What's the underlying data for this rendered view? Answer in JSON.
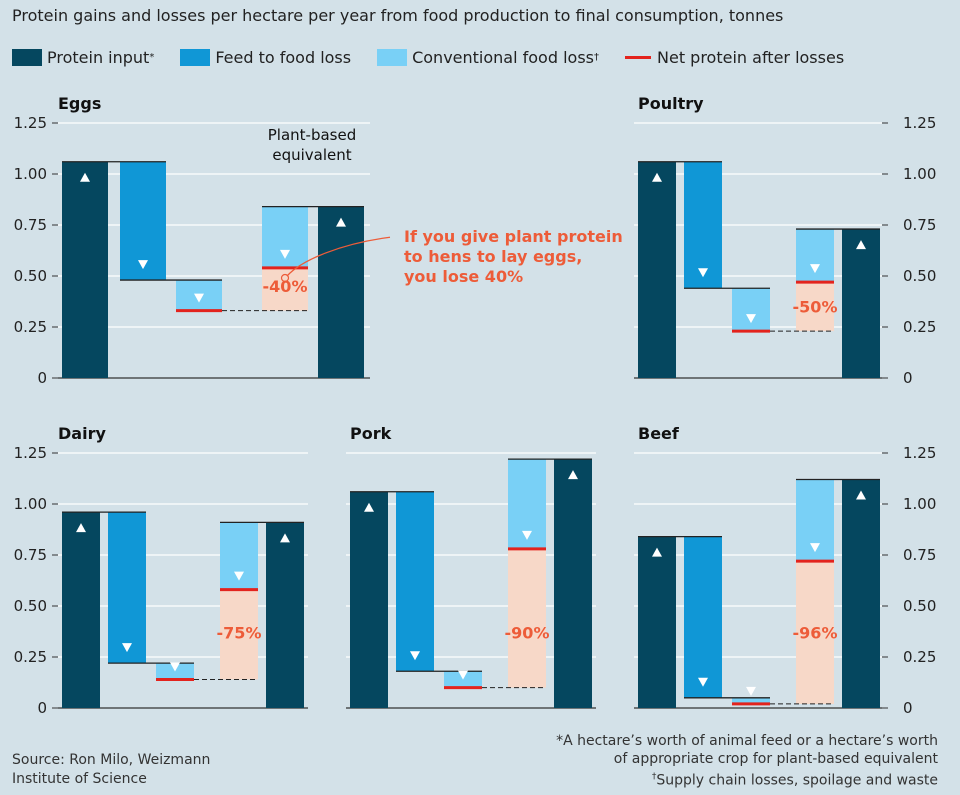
{
  "title": "Protein gains and losses per hectare per year from food production to final consumption, tonnes",
  "legend": [
    {
      "label": "Protein input",
      "sup": "*",
      "color": "#05475f",
      "kind": "box"
    },
    {
      "label": "Feed to food loss",
      "sup": "",
      "color": "#1097d6",
      "kind": "box"
    },
    {
      "label": "Conventional food loss",
      "sup": "†",
      "color": "#79d0f6",
      "kind": "box"
    },
    {
      "label": "Net protein after losses",
      "sup": "",
      "color": "#e3231d",
      "kind": "line"
    }
  ],
  "colors": {
    "protein_input": "#05475f",
    "feed_to_food_loss": "#1097d6",
    "conventional_food_loss": "#79d0f6",
    "net_protein_line": "#e3231d",
    "loss_shading": "#f7d8c8",
    "loss_label": "#ed5c39",
    "background": "#d3e1e8"
  },
  "annotations": {
    "plant_based": [
      "Plant-based",
      "equivalent"
    ],
    "callout": [
      "If you give plant protein",
      "to hens to lay eggs,",
      "you lose 40%"
    ]
  },
  "chart_data": [
    {
      "type": "bar",
      "subtype": "waterfall",
      "title": "Eggs",
      "ylim": [
        0,
        1.25
      ],
      "yticks": [
        "0",
        "0.25",
        "0.50",
        "0.75",
        "1.00",
        "1.25"
      ],
      "grid": true,
      "animal_input": 1.06,
      "after_feed_to_food": 0.48,
      "animal_net": 0.33,
      "plant_input": 0.84,
      "plant_net": 0.54,
      "loss_label": "-40%"
    },
    {
      "type": "bar",
      "subtype": "waterfall",
      "title": "Poultry",
      "ylim": [
        0,
        1.25
      ],
      "yticks": [
        "0",
        "0.25",
        "0.50",
        "0.75",
        "1.00",
        "1.25"
      ],
      "grid": true,
      "animal_input": 1.06,
      "after_feed_to_food": 0.44,
      "animal_net": 0.23,
      "plant_input": 0.73,
      "plant_net": 0.47,
      "loss_label": "-50%"
    },
    {
      "type": "bar",
      "subtype": "waterfall",
      "title": "Dairy",
      "ylim": [
        0,
        1.25
      ],
      "yticks": [
        "0",
        "0.25",
        "0.50",
        "0.75",
        "1.00",
        "1.25"
      ],
      "grid": true,
      "animal_input": 0.96,
      "after_feed_to_food": 0.22,
      "animal_net": 0.14,
      "plant_input": 0.91,
      "plant_net": 0.58,
      "loss_label": "-75%"
    },
    {
      "type": "bar",
      "subtype": "waterfall",
      "title": "Pork",
      "ylim": [
        0,
        1.25
      ],
      "yticks": [
        "0",
        "0.25",
        "0.50",
        "0.75",
        "1.00",
        "1.25"
      ],
      "grid": true,
      "animal_input": 1.06,
      "after_feed_to_food": 0.18,
      "animal_net": 0.1,
      "plant_input": 1.22,
      "plant_net": 0.78,
      "loss_label": "-90%"
    },
    {
      "type": "bar",
      "subtype": "waterfall",
      "title": "Beef",
      "ylim": [
        0,
        1.25
      ],
      "yticks": [
        "0",
        "0.25",
        "0.50",
        "0.75",
        "1.00",
        "1.25"
      ],
      "grid": true,
      "animal_input": 0.84,
      "after_feed_to_food": 0.05,
      "animal_net": 0.02,
      "plant_input": 1.12,
      "plant_net": 0.72,
      "loss_label": "-96%"
    }
  ],
  "source": [
    "Source: Ron Milo, Weizmann",
    "Institute of Science"
  ],
  "footnotes": {
    "star_mark": "*",
    "star_text": "A hectare’s worth of animal feed or a hectare’s worth",
    "star_text2": "of appropriate crop for plant-based equivalent",
    "dagger_mark": "†",
    "dagger_text": "Supply chain losses, spoilage and waste"
  }
}
